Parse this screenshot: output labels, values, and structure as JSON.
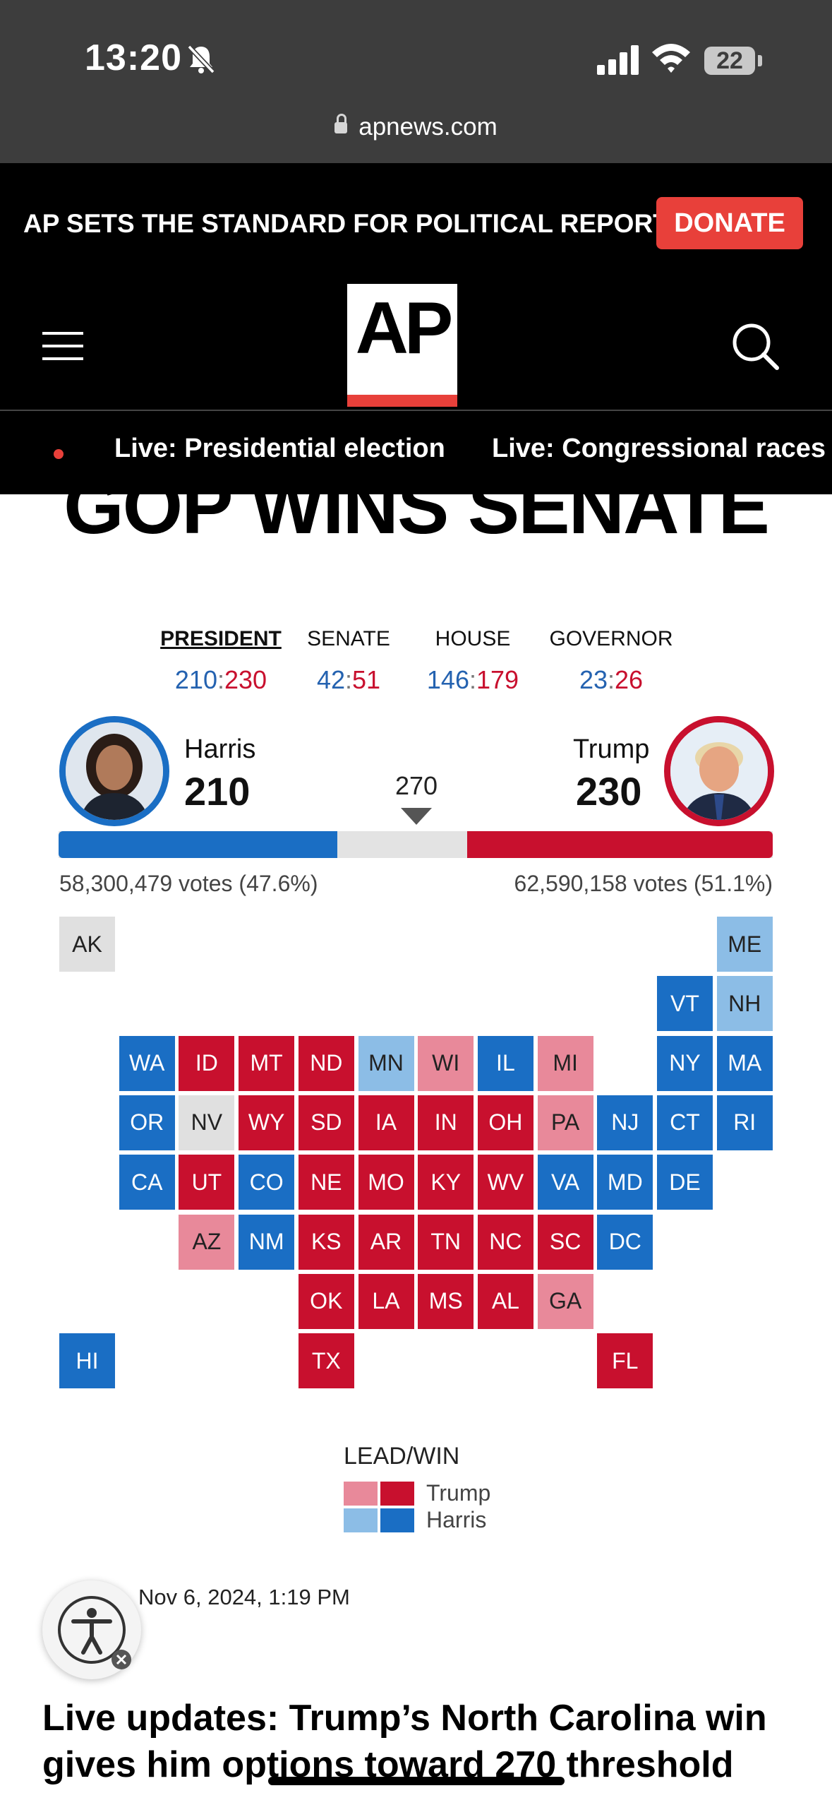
{
  "status": {
    "time": "13:20",
    "battery": "22"
  },
  "browser": {
    "url": "apnews.com"
  },
  "promo": {
    "text": "AP SETS THE STANDARD FOR POLITICAL REPORTING.",
    "donate_label": "DONATE"
  },
  "logo": {
    "text": "AP"
  },
  "live_links": [
    "Live: Presidential election",
    "Live: Congressional races"
  ],
  "headline": "GOP WINS SENATE",
  "races": [
    {
      "label": "PRESIDENT",
      "dem": "210",
      "rep": "230",
      "active": true
    },
    {
      "label": "SENATE",
      "dem": "42",
      "rep": "51",
      "active": false
    },
    {
      "label": "HOUSE",
      "dem": "146",
      "rep": "179",
      "active": false
    },
    {
      "label": "GOVERNOR",
      "dem": "23",
      "rep": "26",
      "active": false
    }
  ],
  "candidates": {
    "harris": {
      "name": "Harris",
      "electoral": "210",
      "votes_text": "58,300,479 votes (47.6%)"
    },
    "trump": {
      "name": "Trump",
      "electoral": "230",
      "votes_text": "62,590,158 votes (51.1%)"
    }
  },
  "threshold": "270",
  "progress": {
    "total": 538,
    "dem": 210,
    "rep": 230
  },
  "colors": {
    "rep_win": "#c8102e",
    "rep_lead": "#e8899a",
    "dem_win": "#1a6ec4",
    "dem_lead": "#8cbde6",
    "no_result": "#e0e0e0"
  },
  "states": [
    {
      "abbr": "AK",
      "status": "NA"
    },
    {
      "abbr": "ME",
      "status": "LB"
    },
    {
      "abbr": "VT",
      "status": "B"
    },
    {
      "abbr": "NH",
      "status": "LB"
    },
    {
      "abbr": "WA",
      "status": "B"
    },
    {
      "abbr": "ID",
      "status": "R"
    },
    {
      "abbr": "MT",
      "status": "R"
    },
    {
      "abbr": "ND",
      "status": "R"
    },
    {
      "abbr": "MN",
      "status": "LB"
    },
    {
      "abbr": "WI",
      "status": "LR"
    },
    {
      "abbr": "IL",
      "status": "B"
    },
    {
      "abbr": "MI",
      "status": "LR"
    },
    {
      "abbr": "NY",
      "status": "B"
    },
    {
      "abbr": "MA",
      "status": "B"
    },
    {
      "abbr": "OR",
      "status": "B"
    },
    {
      "abbr": "NV",
      "status": "NA"
    },
    {
      "abbr": "WY",
      "status": "R"
    },
    {
      "abbr": "SD",
      "status": "R"
    },
    {
      "abbr": "IA",
      "status": "R"
    },
    {
      "abbr": "IN",
      "status": "R"
    },
    {
      "abbr": "OH",
      "status": "R"
    },
    {
      "abbr": "PA",
      "status": "LR"
    },
    {
      "abbr": "NJ",
      "status": "B"
    },
    {
      "abbr": "CT",
      "status": "B"
    },
    {
      "abbr": "RI",
      "status": "B"
    },
    {
      "abbr": "CA",
      "status": "B"
    },
    {
      "abbr": "UT",
      "status": "R"
    },
    {
      "abbr": "CO",
      "status": "B"
    },
    {
      "abbr": "NE",
      "status": "R"
    },
    {
      "abbr": "MO",
      "status": "R"
    },
    {
      "abbr": "KY",
      "status": "R"
    },
    {
      "abbr": "WV",
      "status": "R"
    },
    {
      "abbr": "VA",
      "status": "B"
    },
    {
      "abbr": "MD",
      "status": "B"
    },
    {
      "abbr": "DE",
      "status": "B"
    },
    {
      "abbr": "AZ",
      "status": "LR"
    },
    {
      "abbr": "NM",
      "status": "B"
    },
    {
      "abbr": "KS",
      "status": "R"
    },
    {
      "abbr": "AR",
      "status": "R"
    },
    {
      "abbr": "TN",
      "status": "R"
    },
    {
      "abbr": "NC",
      "status": "R"
    },
    {
      "abbr": "SC",
      "status": "R"
    },
    {
      "abbr": "DC",
      "status": "B"
    },
    {
      "abbr": "OK",
      "status": "R"
    },
    {
      "abbr": "LA",
      "status": "R"
    },
    {
      "abbr": "MS",
      "status": "R"
    },
    {
      "abbr": "AL",
      "status": "R"
    },
    {
      "abbr": "GA",
      "status": "LR"
    },
    {
      "abbr": "HI",
      "status": "B"
    },
    {
      "abbr": "TX",
      "status": "R"
    },
    {
      "abbr": "FL",
      "status": "R"
    }
  ],
  "legend": {
    "title": "LEAD/WIN",
    "trump": "Trump",
    "harris": "Harris"
  },
  "updated": "Nov 6, 2024, 1:19 PM",
  "article_title": "Live updates: Trump’s North Carolina win gives him options toward 270 threshold",
  "icons": [
    "bell-slash-icon",
    "signal-icon",
    "wifi-icon",
    "battery-icon",
    "lock-icon",
    "menu-icon",
    "search-icon",
    "accessibility-icon",
    "triangle-down-icon"
  ]
}
